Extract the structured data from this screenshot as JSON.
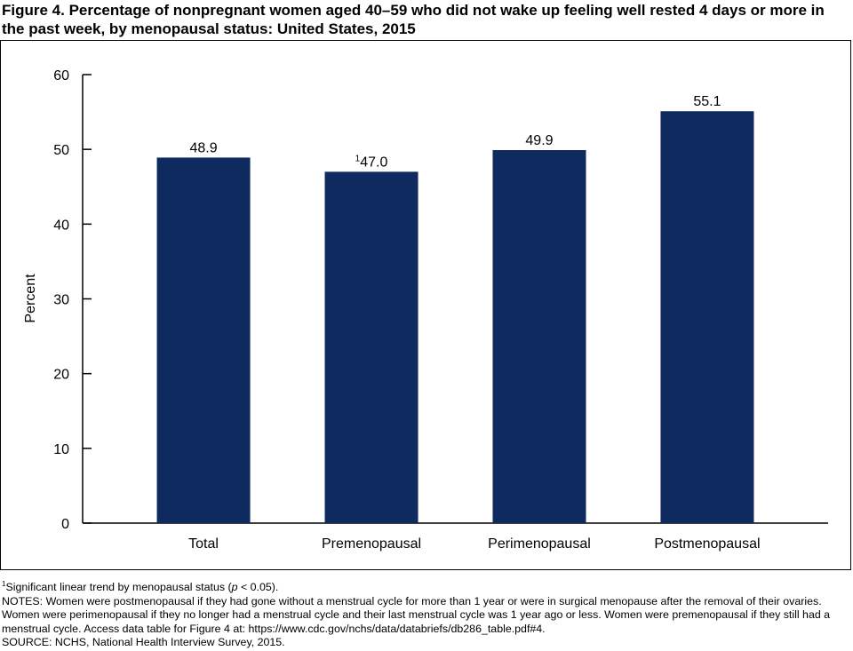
{
  "figure": {
    "title": "Figure 4. Percentage of nonpregnant women aged 40–59 who did not wake up feeling well rested 4 days or more in the past week, by menopausal status: United States, 2015"
  },
  "chart_data": {
    "type": "bar",
    "title": "",
    "xlabel": "",
    "ylabel": "Percent",
    "ylim": [
      0,
      60
    ],
    "yticks": [
      0,
      10,
      20,
      30,
      40,
      50,
      60
    ],
    "categories": [
      "Total",
      "Premenopausal",
      "Perimenopausal",
      "Postmenopausal"
    ],
    "values": [
      48.9,
      47.0,
      49.9,
      55.1
    ],
    "data_labels": [
      "48.9",
      "47.0",
      "49.9",
      "55.1"
    ],
    "label_superscripts": [
      "",
      "1",
      "",
      ""
    ],
    "bar_color": "#0e2a5e",
    "grid": false
  },
  "notes": {
    "footnote_marker": "1",
    "footnote_text": "Significant linear trend by menopausal status (",
    "footnote_p": "p",
    "footnote_tail": " < 0.05).",
    "notes_text": "NOTES: Women were postmenopausal if they had gone without a menstrual cycle for more than 1 year or were in surgical menopause after the removal of their ovaries. Women were perimenopausal if they no longer had a menstrual cycle and their last menstrual cycle was 1 year ago or less. Women were premenopausal if they still had a menstrual cycle. Access data table for Figure 4 at: https://www.cdc.gov/nchs/data/databriefs/db286_table.pdf#4.",
    "source_text": "SOURCE: NCHS, National Health Interview Survey, 2015."
  }
}
